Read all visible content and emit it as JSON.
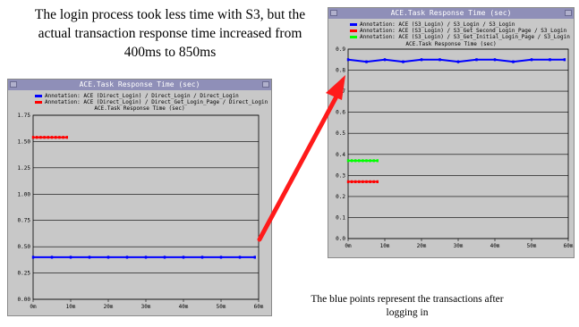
{
  "annotation": {
    "left_caption": "The login process took less time with S3, but the actual transaction response time increased from 400ms to 850ms",
    "right_caption": "The blue points represent the transactions after logging in",
    "arrow_color": "#ff1a1a"
  },
  "chart_data": [
    {
      "type": "scatter",
      "window_title": "ACE.Task Response Time (sec)",
      "title": "ACE.Task Response Time (sec)",
      "xlabel": "",
      "ylabel": "",
      "ylim": [
        0,
        1.75
      ],
      "xlim": [
        0,
        60
      ],
      "yticks": [
        0.0,
        0.25,
        0.5,
        0.75,
        1.0,
        1.25,
        1.5,
        1.75
      ],
      "ytick_labels": [
        "0.00",
        "0.25",
        "0.50",
        "0.75",
        "1.00",
        "1.25",
        "1.50",
        "1.75"
      ],
      "xticks": [
        0,
        10,
        20,
        30,
        40,
        50,
        60
      ],
      "xtick_labels": [
        "0m",
        "10m",
        "20m",
        "30m",
        "40m",
        "50m",
        "60m"
      ],
      "grid": true,
      "legend_position": "top",
      "series": [
        {
          "name": "Annotation: ACE (Direct_Login) / Direct_Login / Direct_Login",
          "color": "#0000ff",
          "x": [
            0,
            5,
            10,
            15,
            20,
            25,
            30,
            35,
            40,
            45,
            50,
            55,
            59
          ],
          "y": [
            0.4,
            0.4,
            0.4,
            0.4,
            0.4,
            0.4,
            0.4,
            0.4,
            0.4,
            0.4,
            0.4,
            0.4,
            0.4
          ]
        },
        {
          "name": "Annotation: ACE (Direct_Login) / Direct_Get_Login_Page / Direct_Login",
          "color": "#ff0000",
          "x": [
            0,
            1,
            2,
            3,
            4,
            5,
            6,
            7,
            8,
            9
          ],
          "y": [
            1.54,
            1.54,
            1.54,
            1.54,
            1.54,
            1.54,
            1.54,
            1.54,
            1.54,
            1.54
          ]
        }
      ]
    },
    {
      "type": "scatter",
      "window_title": "ACE.Task Response Time (sec)",
      "title": "ACE.Task Response Time (sec)",
      "xlabel": "",
      "ylabel": "",
      "ylim": [
        0,
        0.9
      ],
      "xlim": [
        0,
        60
      ],
      "yticks": [
        0.0,
        0.1,
        0.2,
        0.3,
        0.4,
        0.5,
        0.6,
        0.7,
        0.8,
        0.9
      ],
      "ytick_labels": [
        "0.0",
        "0.1",
        "0.2",
        "0.3",
        "0.4",
        "0.5",
        "0.6",
        "0.7",
        "0.8",
        "0.9"
      ],
      "xticks": [
        0,
        10,
        20,
        30,
        40,
        50,
        60
      ],
      "xtick_labels": [
        "0m",
        "10m",
        "20m",
        "30m",
        "40m",
        "50m",
        "60m"
      ],
      "grid": true,
      "legend_position": "top",
      "series": [
        {
          "name": "Annotation: ACE (S3_Login) / S3_Login / S3_Login",
          "color": "#0000ff",
          "x": [
            0,
            5,
            10,
            15,
            20,
            25,
            30,
            35,
            40,
            45,
            50,
            55,
            59
          ],
          "y": [
            0.85,
            0.84,
            0.85,
            0.84,
            0.85,
            0.85,
            0.84,
            0.85,
            0.85,
            0.84,
            0.85,
            0.85,
            0.85
          ]
        },
        {
          "name": "Annotation: ACE (S3_Login) / S3_Get_Second_Login_Page / S3_Login",
          "color": "#ff0000",
          "x": [
            0,
            1,
            2,
            3,
            4,
            5,
            6,
            7,
            8
          ],
          "y": [
            0.27,
            0.27,
            0.27,
            0.27,
            0.27,
            0.27,
            0.27,
            0.27,
            0.27
          ]
        },
        {
          "name": "Annotation: ACE (S3_Login) / S3_Get_Initial_Login_Page / S3_Login",
          "color": "#00ff00",
          "x": [
            0,
            1,
            2,
            3,
            4,
            5,
            6,
            7,
            8
          ],
          "y": [
            0.37,
            0.37,
            0.37,
            0.37,
            0.37,
            0.37,
            0.37,
            0.37,
            0.37
          ]
        }
      ]
    }
  ]
}
